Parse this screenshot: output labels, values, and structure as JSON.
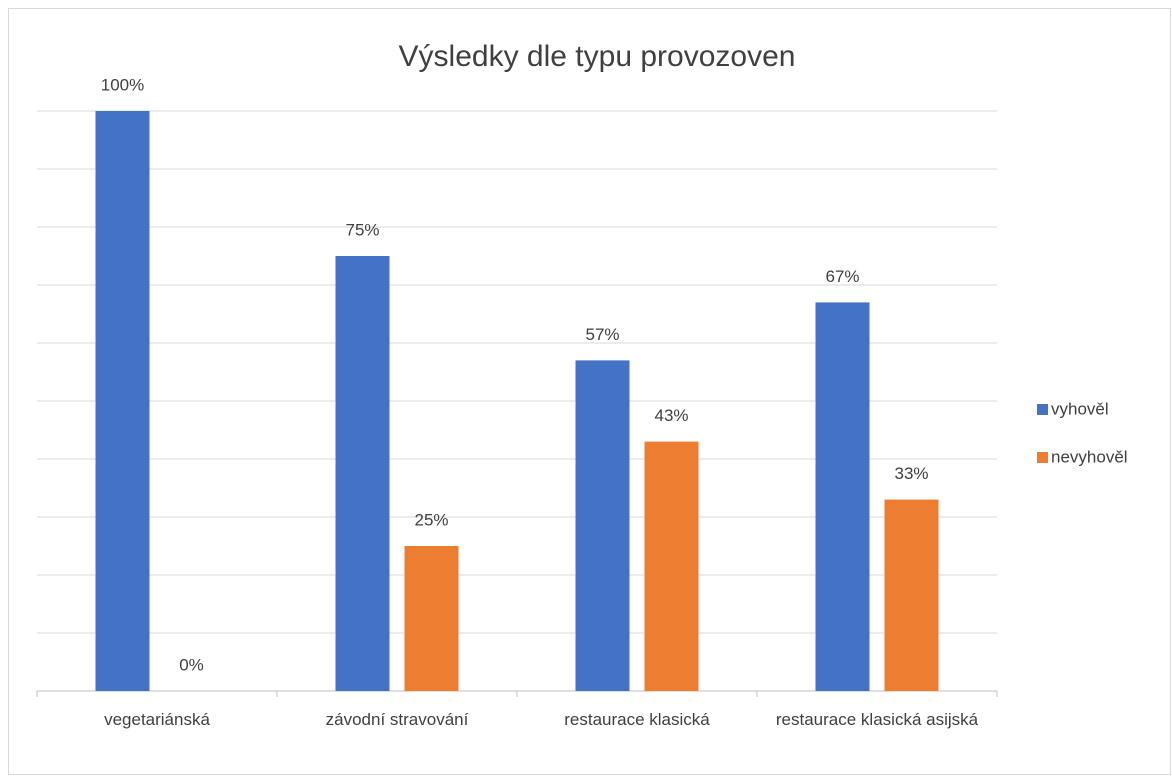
{
  "chart_data": {
    "type": "bar",
    "title": "Výsledky dle typu provozoven",
    "categories": [
      "vegetariánská",
      "závodní stravování",
      "restaurace klasická",
      "restaurace klasická asijská"
    ],
    "series": [
      {
        "name": "vyhověl",
        "color": "#4472c4",
        "values": [
          100,
          75,
          57,
          67
        ],
        "value_labels": [
          "100%",
          "75%",
          "57%",
          "67%"
        ]
      },
      {
        "name": "nevyhověl",
        "color": "#ed7d31",
        "values": [
          0,
          25,
          43,
          33
        ],
        "value_labels": [
          "0%",
          "25%",
          "43%",
          "33%"
        ]
      }
    ],
    "ylim": [
      0,
      100
    ],
    "yticks": [
      0,
      10,
      20,
      30,
      40,
      50,
      60,
      70,
      80,
      90,
      100
    ],
    "grid": true,
    "legend": "right"
  }
}
